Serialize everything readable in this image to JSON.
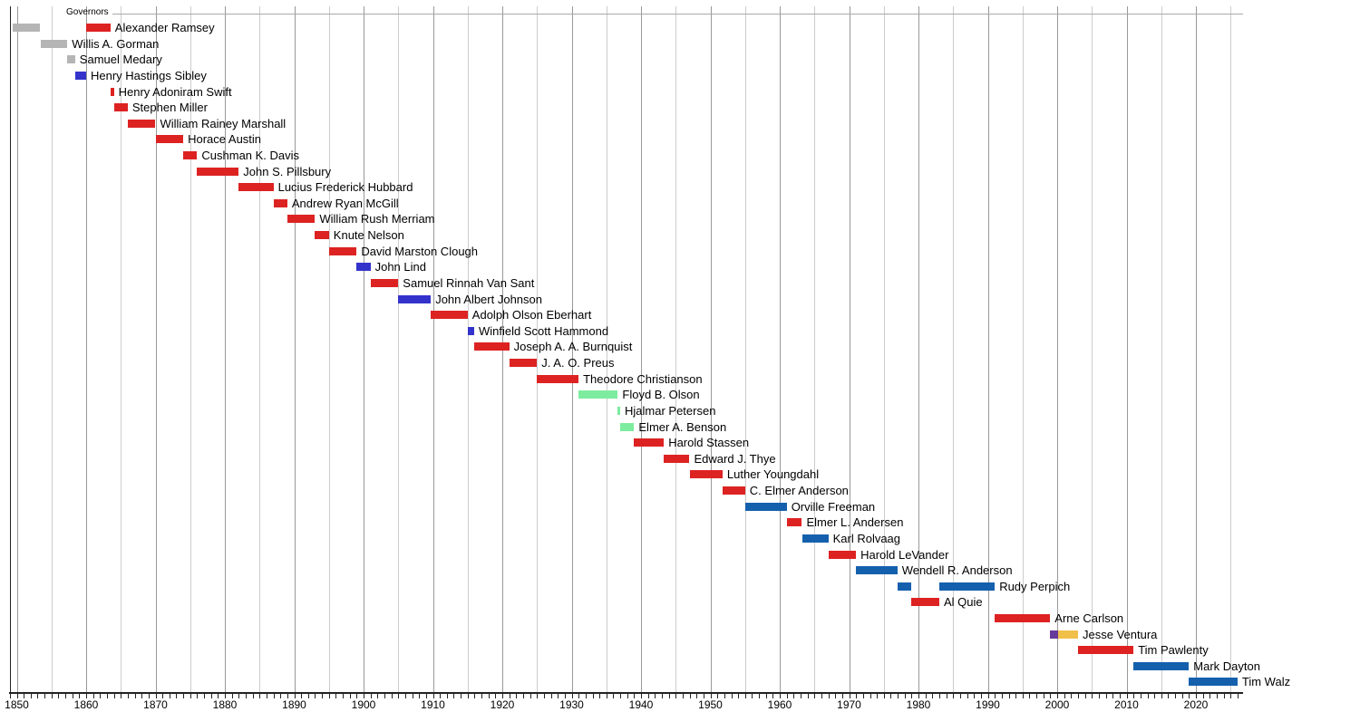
{
  "chart_data": {
    "type": "bar",
    "variant": "horizontal-gantt-timeline",
    "title": "Governors",
    "legend": "none",
    "grid": "vertical, every 5 years (decade lines darker)",
    "x_axis": {
      "start": 1849,
      "end": 2027,
      "tick_every_years": 1,
      "gridline_every_years": 5,
      "decade_labels": [
        1850,
        1860,
        1870,
        1880,
        1890,
        1900,
        1910,
        1920,
        1930,
        1940,
        1950,
        1960,
        1970,
        1980,
        1990,
        2000,
        2010,
        2020
      ]
    },
    "party_colors": {
      "territorial": "#b5b5b5",
      "republican": "#dd2222",
      "democratic": "#3333cc",
      "farmer_labor": "#7dec9e",
      "dfl": "#1560ad",
      "reform": "#663a99",
      "independence": "#f0c04a"
    },
    "axis_color": "#222222",
    "gridline_minor_color": "#cccccc",
    "gridline_major_color": "#999999",
    "header_line_color": "#aaaaaa",
    "rows": [
      {
        "label": "Alexander Ramsey",
        "bars": [
          {
            "start": 1849.4,
            "end": 1853.4,
            "party": "territorial"
          },
          {
            "start": 1860,
            "end": 1863.5,
            "party": "republican"
          }
        ]
      },
      {
        "label": "Willis A. Gorman",
        "bars": [
          {
            "start": 1853.4,
            "end": 1857.3,
            "party": "territorial"
          }
        ]
      },
      {
        "label": "Samuel Medary",
        "bars": [
          {
            "start": 1857.3,
            "end": 1858.4,
            "party": "territorial"
          }
        ]
      },
      {
        "label": "Henry Hastings Sibley",
        "bars": [
          {
            "start": 1858.4,
            "end": 1860,
            "party": "democratic"
          }
        ]
      },
      {
        "label": "Henry Adoniram Swift",
        "bars": [
          {
            "start": 1863.5,
            "end": 1864,
            "party": "republican"
          }
        ]
      },
      {
        "label": "Stephen Miller",
        "bars": [
          {
            "start": 1864,
            "end": 1866,
            "party": "republican"
          }
        ]
      },
      {
        "label": "William Rainey Marshall",
        "bars": [
          {
            "start": 1866,
            "end": 1870,
            "party": "republican"
          }
        ]
      },
      {
        "label": "Horace Austin",
        "bars": [
          {
            "start": 1870,
            "end": 1874,
            "party": "republican"
          }
        ]
      },
      {
        "label": "Cushman K. Davis",
        "bars": [
          {
            "start": 1874,
            "end": 1876,
            "party": "republican"
          }
        ]
      },
      {
        "label": "John S. Pillsbury",
        "bars": [
          {
            "start": 1876,
            "end": 1882,
            "party": "republican"
          }
        ]
      },
      {
        "label": "Lucius Frederick Hubbard",
        "bars": [
          {
            "start": 1882,
            "end": 1887,
            "party": "republican"
          }
        ]
      },
      {
        "label": "Andrew Ryan McGill",
        "bars": [
          {
            "start": 1887,
            "end": 1889,
            "party": "republican"
          }
        ]
      },
      {
        "label": "William Rush Merriam",
        "bars": [
          {
            "start": 1889,
            "end": 1893,
            "party": "republican"
          }
        ]
      },
      {
        "label": "Knute Nelson",
        "bars": [
          {
            "start": 1893,
            "end": 1895,
            "party": "republican"
          }
        ]
      },
      {
        "label": "David Marston Clough",
        "bars": [
          {
            "start": 1895,
            "end": 1899,
            "party": "republican"
          }
        ]
      },
      {
        "label": "John Lind",
        "bars": [
          {
            "start": 1899,
            "end": 1901,
            "party": "democratic"
          }
        ]
      },
      {
        "label": "Samuel Rinnah Van Sant",
        "bars": [
          {
            "start": 1901,
            "end": 1905,
            "party": "republican"
          }
        ]
      },
      {
        "label": "John Albert Johnson",
        "bars": [
          {
            "start": 1905,
            "end": 1909.7,
            "party": "democratic"
          }
        ]
      },
      {
        "label": "Adolph Olson Eberhart",
        "bars": [
          {
            "start": 1909.7,
            "end": 1915,
            "party": "republican"
          }
        ]
      },
      {
        "label": "Winfield Scott Hammond",
        "bars": [
          {
            "start": 1915,
            "end": 1915.95,
            "party": "democratic"
          }
        ]
      },
      {
        "label": "Joseph A. A. Burnquist",
        "bars": [
          {
            "start": 1915.95,
            "end": 1921,
            "party": "republican"
          }
        ]
      },
      {
        "label": "J. A. O. Preus",
        "bars": [
          {
            "start": 1921,
            "end": 1925,
            "party": "republican"
          }
        ]
      },
      {
        "label": "Theodore Christianson",
        "bars": [
          {
            "start": 1925,
            "end": 1931,
            "party": "republican"
          }
        ]
      },
      {
        "label": "Floyd B. Olson",
        "bars": [
          {
            "start": 1931,
            "end": 1936.65,
            "party": "farmer_labor"
          }
        ]
      },
      {
        "label": "Hjalmar Petersen",
        "bars": [
          {
            "start": 1936.65,
            "end": 1937,
            "party": "farmer_labor"
          }
        ]
      },
      {
        "label": "Elmer A. Benson",
        "bars": [
          {
            "start": 1937,
            "end": 1939,
            "party": "farmer_labor"
          }
        ]
      },
      {
        "label": "Harold Stassen",
        "bars": [
          {
            "start": 1939,
            "end": 1943.3,
            "party": "republican"
          }
        ]
      },
      {
        "label": "Edward J. Thye",
        "bars": [
          {
            "start": 1943.3,
            "end": 1947,
            "party": "republican"
          }
        ]
      },
      {
        "label": "Luther Youngdahl",
        "bars": [
          {
            "start": 1947,
            "end": 1951.75,
            "party": "republican"
          }
        ]
      },
      {
        "label": "C. Elmer Anderson",
        "bars": [
          {
            "start": 1951.75,
            "end": 1955,
            "party": "republican"
          }
        ]
      },
      {
        "label": "Orville Freeman",
        "bars": [
          {
            "start": 1955,
            "end": 1961,
            "party": "dfl"
          }
        ]
      },
      {
        "label": "Elmer L. Andersen",
        "bars": [
          {
            "start": 1961,
            "end": 1963.2,
            "party": "republican"
          }
        ]
      },
      {
        "label": "Karl Rolvaag",
        "bars": [
          {
            "start": 1963.2,
            "end": 1967,
            "party": "dfl"
          }
        ]
      },
      {
        "label": "Harold LeVander",
        "bars": [
          {
            "start": 1967,
            "end": 1971,
            "party": "republican"
          }
        ]
      },
      {
        "label": "Wendell R. Anderson",
        "bars": [
          {
            "start": 1971,
            "end": 1976.95,
            "party": "dfl"
          }
        ]
      },
      {
        "label": "Rudy Perpich",
        "bars": [
          {
            "start": 1976.95,
            "end": 1979,
            "party": "dfl"
          },
          {
            "start": 1983,
            "end": 1991,
            "party": "dfl"
          }
        ]
      },
      {
        "label": "Al Quie",
        "bars": [
          {
            "start": 1979,
            "end": 1983,
            "party": "republican"
          }
        ]
      },
      {
        "label": "Arne Carlson",
        "bars": [
          {
            "start": 1991,
            "end": 1999,
            "party": "republican"
          }
        ]
      },
      {
        "label": "Jesse Ventura",
        "bars": [
          {
            "start": 1999,
            "end": 2000.1,
            "party": "reform"
          },
          {
            "start": 2000.1,
            "end": 2003,
            "party": "independence"
          }
        ]
      },
      {
        "label": "Tim Pawlenty",
        "bars": [
          {
            "start": 2003,
            "end": 2011,
            "party": "republican"
          }
        ]
      },
      {
        "label": "Mark Dayton",
        "bars": [
          {
            "start": 2011,
            "end": 2019,
            "party": "dfl"
          }
        ]
      },
      {
        "label": "Tim Walz",
        "bars": [
          {
            "start": 2019,
            "end": 2026,
            "party": "dfl"
          }
        ]
      }
    ]
  }
}
